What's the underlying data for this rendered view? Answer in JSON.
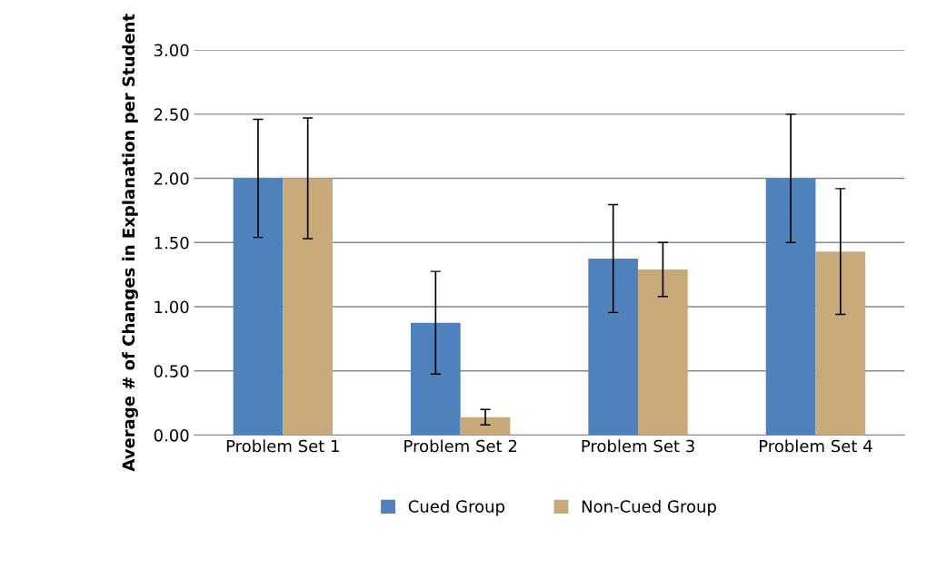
{
  "chart_data": {
    "type": "bar",
    "ylabel": "Average # of Changes in Explanation per Student",
    "categories": [
      "Problem Set 1",
      "Problem Set 2",
      "Problem Set 3",
      "Problem Set 4"
    ],
    "series": [
      {
        "name": "Cued Group",
        "color": "#4f81bd",
        "values": [
          2.0,
          0.875,
          1.375,
          2.0
        ],
        "errors": [
          0.46,
          0.4,
          0.42,
          0.5
        ]
      },
      {
        "name": "Non-Cued Group",
        "color": "#c8aa7a",
        "values": [
          2.0,
          0.14,
          1.29,
          1.43
        ],
        "errors": [
          0.47,
          0.06,
          0.21,
          0.49
        ]
      }
    ],
    "ylim": [
      0,
      3
    ],
    "yticks": [
      {
        "value": 0,
        "label": "0.00"
      },
      {
        "value": 0.5,
        "label": "0.50"
      },
      {
        "value": 1,
        "label": "1.00"
      },
      {
        "value": 1.5,
        "label": "1.50"
      },
      {
        "value": 2,
        "label": "2.00"
      },
      {
        "value": 2.5,
        "label": "2.50"
      },
      {
        "value": 3,
        "label": "3.00"
      }
    ],
    "grid": "y",
    "legend": "bottom"
  }
}
